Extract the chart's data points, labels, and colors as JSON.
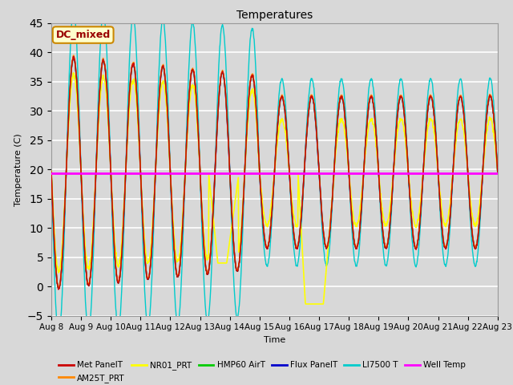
{
  "title": "Temperatures",
  "xlabel": "Time",
  "ylabel": "Temperature (C)",
  "ylim": [
    -5,
    45
  ],
  "yticks": [
    -5,
    0,
    5,
    10,
    15,
    20,
    25,
    30,
    35,
    40,
    45
  ],
  "background_color": "#d8d8d8",
  "plot_bg_color": "#d8d8d8",
  "grid_color": "#ffffff",
  "annotation_text": "DC_mixed",
  "annotation_bg": "#ffffcc",
  "annotation_border": "#cc8800",
  "annotation_text_color": "#990000",
  "series_colors": {
    "Met PanelT": "#cc0000",
    "AM25T_PRT": "#ff8800",
    "NR01_PRT": "#ffff00",
    "HMP60 AirT": "#00cc00",
    "Flux PanelT": "#0000cc",
    "LI7500 T": "#00cccc",
    "Well Temp": "#ff00ff"
  },
  "well_temp_value": 19.3,
  "x_tick_labels": [
    "Aug 8",
    "Aug 9",
    "Aug 10",
    "Aug 11",
    "Aug 12",
    "Aug 13",
    "Aug 14",
    "Aug 15",
    "Aug 16",
    "Aug 17",
    "Aug 18",
    "Aug 19",
    "Aug 20",
    "Aug 21",
    "Aug 22",
    "Aug 23"
  ]
}
